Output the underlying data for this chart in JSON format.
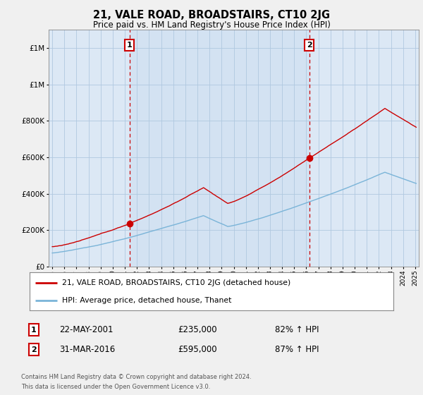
{
  "title": "21, VALE ROAD, BROADSTAIRS, CT10 2JG",
  "subtitle": "Price paid vs. HM Land Registry's House Price Index (HPI)",
  "ylim": [
    0,
    1300000
  ],
  "ytick_values": [
    0,
    200000,
    400000,
    600000,
    800000,
    1000000,
    1200000
  ],
  "sale1_x": 2001.39,
  "sale1_price": 235000,
  "sale1_date": "22-MAY-2001",
  "sale1_pct": "82% ↑ HPI",
  "sale2_x": 2016.25,
  "sale2_price": 595000,
  "sale2_date": "31-MAR-2016",
  "sale2_pct": "87% ↑ HPI",
  "hpi_color": "#7ab4d8",
  "sale_color": "#cc0000",
  "legend_label1": "21, VALE ROAD, BROADSTAIRS, CT10 2JG (detached house)",
  "legend_label2": "HPI: Average price, detached house, Thanet",
  "footer1": "Contains HM Land Registry data © Crown copyright and database right 2024.",
  "footer2": "This data is licensed under the Open Government Licence v3.0.",
  "background_color": "#f0f0f0",
  "plot_bg_color": "#dce8f5",
  "grid_color": "#b0c8e0",
  "ann_color": "#cc0000"
}
